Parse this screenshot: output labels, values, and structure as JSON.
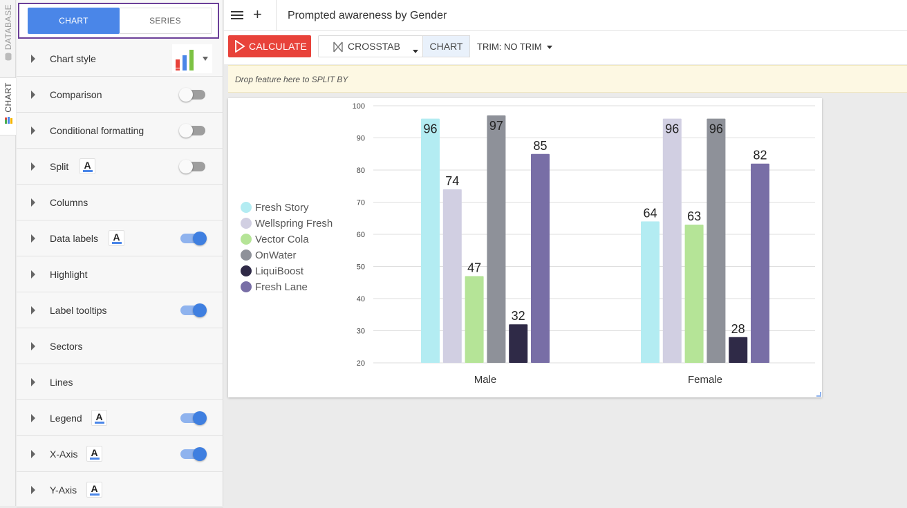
{
  "rail": {
    "database_label": "DATABASE",
    "chart_label": "CHART"
  },
  "panel": {
    "tabs": {
      "chart": "CHART",
      "series": "SERIES"
    },
    "rows": [
      {
        "label": "Chart style",
        "has_badge": false,
        "toggle": null
      },
      {
        "label": "Comparison",
        "has_badge": false,
        "toggle": "off"
      },
      {
        "label": "Conditional formatting",
        "has_badge": false,
        "toggle": "off"
      },
      {
        "label": "Split",
        "has_badge": true,
        "toggle": "off"
      },
      {
        "label": "Columns",
        "has_badge": false,
        "toggle": null
      },
      {
        "label": "Data labels",
        "has_badge": true,
        "toggle": "on"
      },
      {
        "label": "Highlight",
        "has_badge": false,
        "toggle": null
      },
      {
        "label": "Label tooltips",
        "has_badge": false,
        "toggle": "on"
      },
      {
        "label": "Sectors",
        "has_badge": false,
        "toggle": null
      },
      {
        "label": "Lines",
        "has_badge": false,
        "toggle": null
      },
      {
        "label": "Legend",
        "has_badge": true,
        "toggle": "on"
      },
      {
        "label": "X-Axis",
        "has_badge": true,
        "toggle": "on"
      },
      {
        "label": "Y-Axis",
        "has_badge": true,
        "toggle": null
      }
    ],
    "badge_letter": "A"
  },
  "header": {
    "title": "Prompted awareness by Gender",
    "menu_icon": "hamburger-icon",
    "add_label": "+"
  },
  "toolbar": {
    "calculate_label": "CALCULATE",
    "crosstab_label": "CROSSTAB",
    "chart_label": "CHART",
    "trim_label": "TRIM: NO TRIM",
    "calculate_color": "#e8423a"
  },
  "splitbar": {
    "hint": "Drop feature here to SPLIT BY"
  },
  "chart_data": {
    "type": "bar",
    "categories": [
      "Male",
      "Female"
    ],
    "series": [
      {
        "name": "Fresh Story",
        "color": "#b3ecf2",
        "values": [
          96,
          64
        ]
      },
      {
        "name": "Wellspring Fresh",
        "color": "#d1cfe2",
        "values": [
          74,
          96
        ]
      },
      {
        "name": "Vector Cola",
        "color": "#b5e497",
        "values": [
          47,
          63
        ]
      },
      {
        "name": "OnWater",
        "color": "#8e9199",
        "values": [
          97,
          96
        ]
      },
      {
        "name": "LiquiBoost",
        "color": "#2f2a47",
        "values": [
          32,
          28
        ]
      },
      {
        "name": "Fresh Lane",
        "color": "#786ea6",
        "values": [
          85,
          82
        ]
      }
    ],
    "ylim": [
      20,
      100
    ],
    "yticks": [
      20,
      30,
      40,
      50,
      60,
      70,
      80,
      90,
      100
    ],
    "grid": true,
    "legend": "left",
    "data_labels": true
  }
}
